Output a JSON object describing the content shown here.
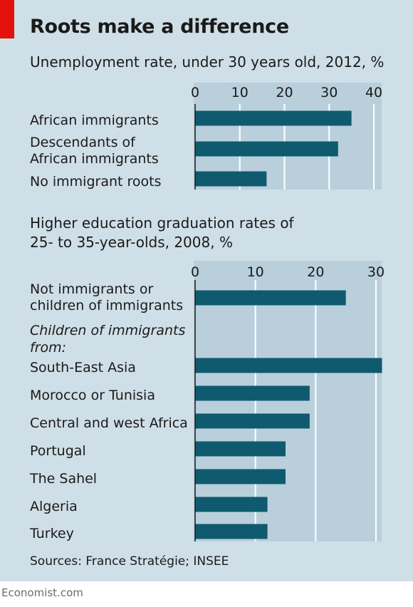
{
  "title": "Roots make a difference",
  "source": "Sources: France Stratégie; INSEE",
  "credit": "Economist.com",
  "colors": {
    "bar": "#0f5a6e",
    "accent": "#e3120b",
    "background": "#cfdfe7",
    "plot": "#b9d0dc"
  },
  "chart_data": [
    {
      "type": "bar",
      "orientation": "horizontal",
      "title": "Unemployment rate, under 30 years old, 2012, %",
      "categories": [
        "African immigrants",
        "Descendants of African immigrants",
        "No immigrant roots"
      ],
      "category_lines": [
        [
          "African immigrants"
        ],
        [
          "Descendants of",
          "African immigrants"
        ],
        [
          "No immigrant roots"
        ]
      ],
      "values": [
        35,
        32,
        16
      ],
      "xlim": [
        0,
        40
      ],
      "ticks": [
        0,
        10,
        20,
        30,
        40
      ],
      "grid": true
    },
    {
      "type": "bar",
      "orientation": "horizontal",
      "title_lines": [
        "Higher education graduation rates of",
        "25- to 35-year-olds, 2008, %"
      ],
      "title": "Higher education graduation rates of 25- to 35-year-olds, 2008, %",
      "group_label_lines": [
        "Children of immigrants",
        "from:"
      ],
      "categories": [
        "Not immigrants or children of immigrants",
        "South-East Asia",
        "Morocco or Tunisia",
        "Central and west Africa",
        "Portugal",
        "The Sahel",
        "Algeria",
        "Turkey"
      ],
      "category_lines": [
        [
          "Not immigrants or",
          "children of immigrants"
        ],
        [
          "South-East Asia"
        ],
        [
          "Morocco or Tunisia"
        ],
        [
          "Central and west Africa"
        ],
        [
          "Portugal"
        ],
        [
          "The Sahel"
        ],
        [
          "Algeria"
        ],
        [
          "Turkey"
        ]
      ],
      "values": [
        25,
        31,
        19,
        19,
        15,
        15,
        12,
        12
      ],
      "xlim": [
        0,
        30
      ],
      "ticks": [
        0,
        10,
        20,
        30
      ],
      "grid": true
    }
  ]
}
